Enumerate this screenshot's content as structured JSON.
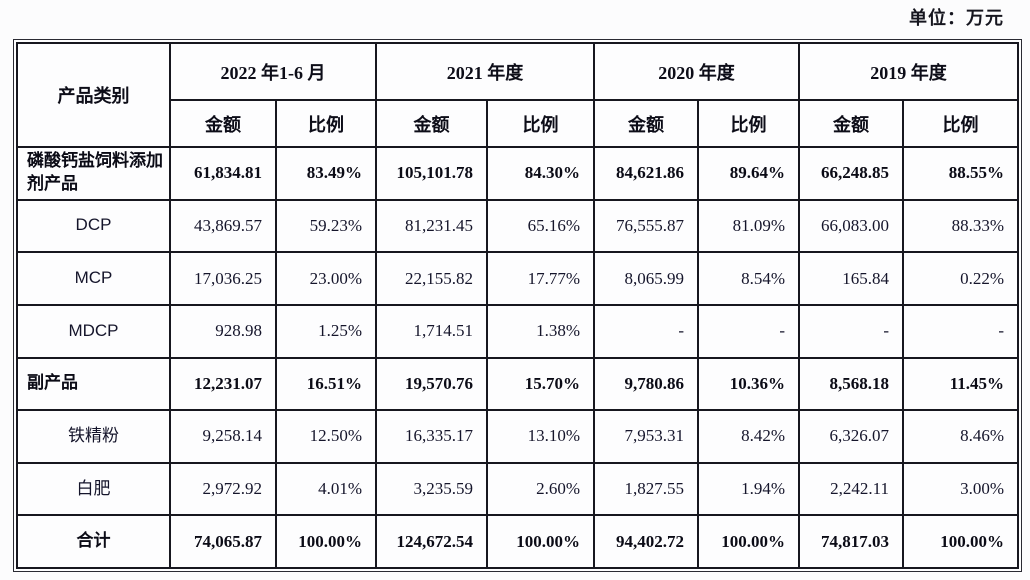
{
  "unit_label": "单位：万元",
  "table": {
    "category_header": "产品类别",
    "col_groups": [
      {
        "label": "2022 年1-6 月",
        "sub": [
          "金额",
          "比例"
        ]
      },
      {
        "label": "2021 年度",
        "sub": [
          "金额",
          "比例"
        ]
      },
      {
        "label": "2020 年度",
        "sub": [
          "金额",
          "比例"
        ]
      },
      {
        "label": "2019 年度",
        "sub": [
          "金额",
          "比例"
        ]
      }
    ],
    "rows": [
      {
        "label": "磷酸钙盐饲料添加剂产品",
        "emphasis": true,
        "label_align": "left",
        "values": [
          "61,834.81",
          "83.49%",
          "105,101.78",
          "84.30%",
          "84,621.86",
          "89.64%",
          "66,248.85",
          "88.55%"
        ]
      },
      {
        "label": "DCP",
        "emphasis": false,
        "label_align": "center",
        "values": [
          "43,869.57",
          "59.23%",
          "81,231.45",
          "65.16%",
          "76,555.87",
          "81.09%",
          "66,083.00",
          "88.33%"
        ]
      },
      {
        "label": "MCP",
        "emphasis": false,
        "label_align": "center",
        "values": [
          "17,036.25",
          "23.00%",
          "22,155.82",
          "17.77%",
          "8,065.99",
          "8.54%",
          "165.84",
          "0.22%"
        ]
      },
      {
        "label": "MDCP",
        "emphasis": false,
        "label_align": "center",
        "values": [
          "928.98",
          "1.25%",
          "1,714.51",
          "1.38%",
          "-",
          "-",
          "-",
          "-"
        ]
      },
      {
        "label": "副产品",
        "emphasis": true,
        "label_align": "left",
        "values": [
          "12,231.07",
          "16.51%",
          "19,570.76",
          "15.70%",
          "9,780.86",
          "10.36%",
          "8,568.18",
          "11.45%"
        ]
      },
      {
        "label": "铁精粉",
        "emphasis": false,
        "label_align": "center",
        "values": [
          "9,258.14",
          "12.50%",
          "16,335.17",
          "13.10%",
          "7,953.31",
          "8.42%",
          "6,326.07",
          "8.46%"
        ]
      },
      {
        "label": "白肥",
        "emphasis": false,
        "label_align": "center",
        "values": [
          "2,972.92",
          "4.01%",
          "3,235.59",
          "2.60%",
          "1,827.55",
          "1.94%",
          "2,242.11",
          "3.00%"
        ]
      },
      {
        "label": "合计",
        "emphasis": true,
        "label_align": "center",
        "values": [
          "74,065.87",
          "100.00%",
          "124,672.54",
          "100.00%",
          "94,402.72",
          "100.00%",
          "74,817.03",
          "100.00%"
        ]
      }
    ]
  }
}
